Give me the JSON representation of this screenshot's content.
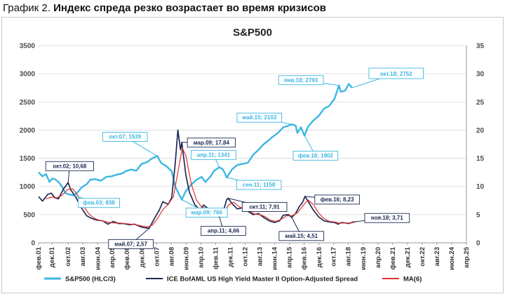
{
  "heading": {
    "prefix": "График 2.",
    "text": "Индекс спреда резко возрастает во время кризисов"
  },
  "colors": {
    "sp": "#3cb6e3",
    "hy": "#1c2a55",
    "ma": "#e03030"
  },
  "chart_data": {
    "type": "line",
    "title": "S&P500",
    "x_range": [
      2001.08,
      2025.25
    ],
    "ylim_left": [
      0,
      3500
    ],
    "ylim_right": [
      0,
      35
    ],
    "yticks_left": [
      "0",
      "500",
      "1000",
      "1500",
      "2000",
      "2500",
      "3000",
      "3500"
    ],
    "yticks_right": [
      "0",
      "5",
      "10",
      "15",
      "20",
      "25",
      "30",
      "35"
    ],
    "grid": true,
    "legend_position": "bottom",
    "x_tick_labels": [
      {
        "t": 2001.08,
        "label": "фев.01"
      },
      {
        "t": 2001.83,
        "label": "дек.01"
      },
      {
        "t": 2002.75,
        "label": "окт.02"
      },
      {
        "t": 2003.58,
        "label": "авг.03"
      },
      {
        "t": 2004.42,
        "label": "июн.04"
      },
      {
        "t": 2005.25,
        "label": "апр.05"
      },
      {
        "t": 2006.08,
        "label": "фев.06"
      },
      {
        "t": 2006.92,
        "label": "дек.06"
      },
      {
        "t": 2007.75,
        "label": "окт.07"
      },
      {
        "t": 2008.58,
        "label": "авг.08"
      },
      {
        "t": 2009.42,
        "label": "июн.09"
      },
      {
        "t": 2010.25,
        "label": "апр.10"
      },
      {
        "t": 2011.08,
        "label": "фев.11"
      },
      {
        "t": 2011.92,
        "label": "дек.11"
      },
      {
        "t": 2012.75,
        "label": "окт.12"
      },
      {
        "t": 2013.58,
        "label": "авг.13"
      },
      {
        "t": 2014.42,
        "label": "июн.14"
      },
      {
        "t": 2015.25,
        "label": "апр.15"
      },
      {
        "t": 2016.08,
        "label": "фев.16"
      },
      {
        "t": 2016.92,
        "label": "дек.16"
      },
      {
        "t": 2017.75,
        "label": "окт.17"
      },
      {
        "t": 2018.58,
        "label": "авг.18"
      },
      {
        "t": 2019.42,
        "label": "июн.19"
      },
      {
        "t": 2020.25,
        "label": "апр.20"
      },
      {
        "t": 2021.08,
        "label": "фев.21"
      },
      {
        "t": 2021.92,
        "label": "дек.21"
      },
      {
        "t": 2022.75,
        "label": "окт.22"
      },
      {
        "t": 2023.58,
        "label": "авг.23"
      },
      {
        "t": 2024.42,
        "label": "июн.24"
      },
      {
        "t": 2025.25,
        "label": "апр.25"
      }
    ],
    "series": [
      {
        "name": "S&P500 (HLC/3)",
        "axis": "left",
        "color": "#3cb6e3",
        "points": [
          [
            2001.08,
            1250
          ],
          [
            2001.3,
            1180
          ],
          [
            2001.5,
            1220
          ],
          [
            2001.7,
            1080
          ],
          [
            2001.85,
            1140
          ],
          [
            2002.0,
            1130
          ],
          [
            2002.2,
            1080
          ],
          [
            2002.4,
            1000
          ],
          [
            2002.6,
            880
          ],
          [
            2002.8,
            860
          ],
          [
            2003.08,
            838
          ],
          [
            2003.3,
            900
          ],
          [
            2003.5,
            980
          ],
          [
            2003.8,
            1040
          ],
          [
            2004.0,
            1120
          ],
          [
            2004.3,
            1130
          ],
          [
            2004.6,
            1100
          ],
          [
            2004.9,
            1170
          ],
          [
            2005.2,
            1180
          ],
          [
            2005.5,
            1210
          ],
          [
            2005.8,
            1230
          ],
          [
            2006.0,
            1270
          ],
          [
            2006.3,
            1300
          ],
          [
            2006.6,
            1280
          ],
          [
            2006.9,
            1400
          ],
          [
            2007.2,
            1430
          ],
          [
            2007.5,
            1500
          ],
          [
            2007.79,
            1539
          ],
          [
            2008.0,
            1420
          ],
          [
            2008.3,
            1360
          ],
          [
            2008.6,
            1270
          ],
          [
            2008.8,
            1000
          ],
          [
            2009.0,
            870
          ],
          [
            2009.17,
            766
          ],
          [
            2009.4,
            920
          ],
          [
            2009.7,
            1030
          ],
          [
            2010.0,
            1120
          ],
          [
            2010.3,
            1170
          ],
          [
            2010.5,
            1080
          ],
          [
            2010.8,
            1180
          ],
          [
            2011.0,
            1280
          ],
          [
            2011.29,
            1341
          ],
          [
            2011.5,
            1300
          ],
          [
            2011.71,
            1158
          ],
          [
            2012.0,
            1300
          ],
          [
            2012.3,
            1380
          ],
          [
            2012.6,
            1400
          ],
          [
            2012.9,
            1420
          ],
          [
            2013.2,
            1560
          ],
          [
            2013.5,
            1650
          ],
          [
            2013.8,
            1750
          ],
          [
            2014.0,
            1800
          ],
          [
            2014.3,
            1880
          ],
          [
            2014.6,
            1950
          ],
          [
            2014.9,
            2050
          ],
          [
            2015.2,
            2080
          ],
          [
            2015.38,
            2103
          ],
          [
            2015.6,
            2080
          ],
          [
            2015.7,
            1950
          ],
          [
            2015.9,
            2050
          ],
          [
            2016.1,
            1902
          ],
          [
            2016.3,
            2060
          ],
          [
            2016.6,
            2170
          ],
          [
            2016.9,
            2250
          ],
          [
            2017.2,
            2380
          ],
          [
            2017.5,
            2430
          ],
          [
            2017.8,
            2560
          ],
          [
            2018.05,
            2793
          ],
          [
            2018.15,
            2680
          ],
          [
            2018.4,
            2700
          ],
          [
            2018.6,
            2820
          ],
          [
            2018.79,
            2752
          ]
        ]
      },
      {
        "name": "ICE BofAML US High Yield Master II Option-Adjusted Spread",
        "axis": "right",
        "color": "#1c2a55",
        "points": [
          [
            2001.08,
            8.2
          ],
          [
            2001.3,
            7.4
          ],
          [
            2001.6,
            8.6
          ],
          [
            2001.8,
            8.8
          ],
          [
            2002.0,
            8.0
          ],
          [
            2002.2,
            7.8
          ],
          [
            2002.5,
            9.6
          ],
          [
            2002.75,
            10.68
          ],
          [
            2002.9,
            9.4
          ],
          [
            2003.2,
            8.0
          ],
          [
            2003.5,
            6.2
          ],
          [
            2003.8,
            4.8
          ],
          [
            2004.1,
            4.3
          ],
          [
            2004.4,
            4.0
          ],
          [
            2004.7,
            3.9
          ],
          [
            2005.0,
            3.3
          ],
          [
            2005.3,
            3.8
          ],
          [
            2005.6,
            3.4
          ],
          [
            2005.9,
            3.4
          ],
          [
            2006.2,
            3.2
          ],
          [
            2006.5,
            3.3
          ],
          [
            2006.8,
            2.9
          ],
          [
            2007.0,
            2.7
          ],
          [
            2007.33,
            2.57
          ],
          [
            2007.6,
            4.2
          ],
          [
            2007.9,
            5.8
          ],
          [
            2008.1,
            7.3
          ],
          [
            2008.4,
            6.8
          ],
          [
            2008.6,
            8.0
          ],
          [
            2008.8,
            14.0
          ],
          [
            2008.95,
            20.0
          ],
          [
            2009.1,
            16.5
          ],
          [
            2009.17,
            17.84
          ],
          [
            2009.4,
            12.0
          ],
          [
            2009.6,
            9.0
          ],
          [
            2009.9,
            6.8
          ],
          [
            2010.2,
            5.8
          ],
          [
            2010.4,
            6.7
          ],
          [
            2010.6,
            6.2
          ],
          [
            2010.9,
            5.6
          ],
          [
            2011.1,
            4.8
          ],
          [
            2011.29,
            4.66
          ],
          [
            2011.5,
            5.4
          ],
          [
            2011.7,
            7.6
          ],
          [
            2011.79,
            7.91
          ],
          [
            2012.0,
            7.0
          ],
          [
            2012.3,
            6.0
          ],
          [
            2012.6,
            6.2
          ],
          [
            2012.9,
            5.6
          ],
          [
            2013.2,
            5.0
          ],
          [
            2013.5,
            5.2
          ],
          [
            2013.8,
            4.5
          ],
          [
            2014.1,
            3.9
          ],
          [
            2014.4,
            3.6
          ],
          [
            2014.7,
            3.9
          ],
          [
            2014.9,
            4.9
          ],
          [
            2015.2,
            5.0
          ],
          [
            2015.38,
            4.51
          ],
          [
            2015.6,
            5.2
          ],
          [
            2015.8,
            6.4
          ],
          [
            2016.0,
            7.2
          ],
          [
            2016.13,
            8.23
          ],
          [
            2016.3,
            7.4
          ],
          [
            2016.6,
            5.8
          ],
          [
            2016.9,
            4.6
          ],
          [
            2017.2,
            3.9
          ],
          [
            2017.5,
            3.7
          ],
          [
            2017.8,
            3.6
          ],
          [
            2018.0,
            3.3
          ],
          [
            2018.2,
            3.6
          ],
          [
            2018.45,
            3.5
          ],
          [
            2018.6,
            3.4
          ],
          [
            2018.87,
            3.71
          ]
        ]
      },
      {
        "name": "MA(6)",
        "axis": "right",
        "color": "#e03030",
        "points": [
          [
            2001.5,
            7.8
          ],
          [
            2001.8,
            8.1
          ],
          [
            2002.1,
            8.0
          ],
          [
            2002.4,
            8.4
          ],
          [
            2002.7,
            9.4
          ],
          [
            2003.0,
            9.6
          ],
          [
            2003.3,
            8.4
          ],
          [
            2003.6,
            6.6
          ],
          [
            2003.9,
            5.2
          ],
          [
            2004.2,
            4.4
          ],
          [
            2004.5,
            4.0
          ],
          [
            2004.8,
            3.8
          ],
          [
            2005.1,
            3.6
          ],
          [
            2005.4,
            3.5
          ],
          [
            2005.7,
            3.5
          ],
          [
            2006.0,
            3.4
          ],
          [
            2006.3,
            3.3
          ],
          [
            2006.6,
            3.2
          ],
          [
            2006.9,
            3.0
          ],
          [
            2007.2,
            2.8
          ],
          [
            2007.5,
            3.1
          ],
          [
            2007.8,
            4.3
          ],
          [
            2008.1,
            5.9
          ],
          [
            2008.4,
            6.8
          ],
          [
            2008.7,
            8.2
          ],
          [
            2008.95,
            12.5
          ],
          [
            2009.2,
            16.8
          ],
          [
            2009.4,
            15.5
          ],
          [
            2009.7,
            10.5
          ],
          [
            2010.0,
            7.6
          ],
          [
            2010.3,
            6.3
          ],
          [
            2010.6,
            6.1
          ],
          [
            2010.9,
            5.8
          ],
          [
            2011.2,
            5.1
          ],
          [
            2011.5,
            5.0
          ],
          [
            2011.8,
            6.7
          ],
          [
            2012.1,
            7.2
          ],
          [
            2012.4,
            6.4
          ],
          [
            2012.7,
            6.0
          ],
          [
            2013.0,
            5.6
          ],
          [
            2013.3,
            5.1
          ],
          [
            2013.6,
            5.0
          ],
          [
            2013.9,
            4.6
          ],
          [
            2014.2,
            4.0
          ],
          [
            2014.5,
            3.8
          ],
          [
            2014.8,
            4.2
          ],
          [
            2015.1,
            4.8
          ],
          [
            2015.4,
            4.8
          ],
          [
            2015.7,
            5.3
          ],
          [
            2016.0,
            6.5
          ],
          [
            2016.3,
            7.6
          ],
          [
            2016.6,
            6.8
          ],
          [
            2016.9,
            5.3
          ],
          [
            2017.2,
            4.3
          ],
          [
            2017.5,
            3.8
          ],
          [
            2017.8,
            3.7
          ],
          [
            2018.1,
            3.5
          ],
          [
            2018.4,
            3.5
          ],
          [
            2018.7,
            3.5
          ],
          [
            2019.0,
            3.7
          ]
        ]
      }
    ],
    "annotations": [
      {
        "text": "окт.07; 1539",
        "series": "S&P500 (HLC/3)",
        "t": 2007.79,
        "v": 1539,
        "axis": "left",
        "style": "sp"
      },
      {
        "text": "фев.03; 838",
        "series": "S&P500 (HLC/3)",
        "t": 2003.08,
        "v": 838,
        "axis": "left",
        "style": "sp"
      },
      {
        "text": "мар.09; 766",
        "series": "S&P500 (HLC/3)",
        "t": 2009.17,
        "v": 766,
        "axis": "left",
        "style": "sp"
      },
      {
        "text": "апр.11; 1341",
        "series": "S&P500 (HLC/3)",
        "t": 2011.29,
        "v": 1341,
        "axis": "left",
        "style": "sp"
      },
      {
        "text": "сен.11; 1158",
        "series": "S&P500 (HLC/3)",
        "t": 2011.71,
        "v": 1158,
        "axis": "left",
        "style": "sp"
      },
      {
        "text": "май.15; 2103",
        "series": "S&P500 (HLC/3)",
        "t": 2015.38,
        "v": 2103,
        "axis": "left",
        "style": "sp"
      },
      {
        "text": "фев.16; 1902",
        "series": "S&P500 (HLC/3)",
        "t": 2016.1,
        "v": 1902,
        "axis": "left",
        "style": "sp"
      },
      {
        "text": "янв.18; 2793",
        "series": "S&P500 (HLC/3)",
        "t": 2018.05,
        "v": 2793,
        "axis": "left",
        "style": "sp"
      },
      {
        "text": "окт.18; 2752",
        "series": "S&P500 (HLC/3)",
        "t": 2018.79,
        "v": 2752,
        "axis": "left",
        "style": "sp-big"
      },
      {
        "text": "окт.02; 10,68",
        "series": "ICE BofAML US High Yield Master II Option-Adjusted Spread",
        "t": 2002.75,
        "v": 10.68,
        "axis": "right",
        "style": "hy"
      },
      {
        "text": "мар.09; 17,84",
        "series": "ICE BofAML US High Yield Master II Option-Adjusted Spread",
        "t": 2009.17,
        "v": 17.84,
        "axis": "right",
        "style": "hy"
      },
      {
        "text": "май.07; 2,57",
        "series": "ICE BofAML US High Yield Master II Option-Adjusted Spread",
        "t": 2007.33,
        "v": 2.57,
        "axis": "right",
        "style": "hy"
      },
      {
        "text": "апр.11; 4,66",
        "series": "ICE BofAML US High Yield Master II Option-Adjusted Spread",
        "t": 2011.29,
        "v": 4.66,
        "axis": "right",
        "style": "hy"
      },
      {
        "text": "окт.11; 7,91",
        "series": "ICE BofAML US High Yield Master II Option-Adjusted Spread",
        "t": 2011.79,
        "v": 7.91,
        "axis": "right",
        "style": "hy"
      },
      {
        "text": "май.15; 4,51",
        "series": "ICE BofAML US High Yield Master II Option-Adjusted Spread",
        "t": 2015.38,
        "v": 4.51,
        "axis": "right",
        "style": "hy"
      },
      {
        "text": "фев.16; 8,23",
        "series": "ICE BofAML US High Yield Master II Option-Adjusted Spread",
        "t": 2016.13,
        "v": 8.23,
        "axis": "right",
        "style": "hy"
      },
      {
        "text": "ноя.18; 3,71",
        "series": "ICE BofAML US High Yield Master II Option-Adjusted Spread",
        "t": 2018.87,
        "v": 3.71,
        "axis": "right",
        "style": "hy"
      }
    ]
  }
}
